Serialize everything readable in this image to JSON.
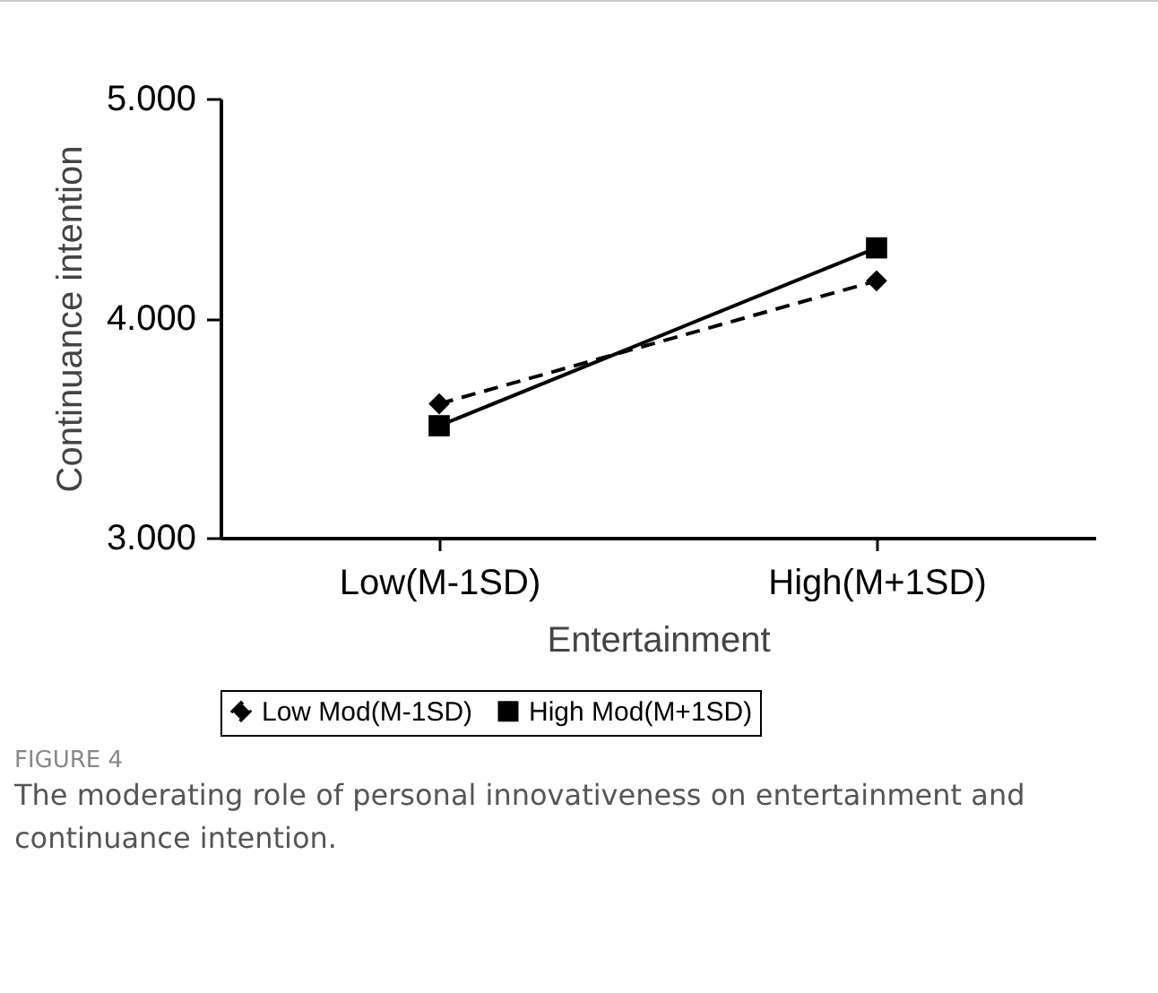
{
  "chart_data": {
    "type": "line",
    "xlabel": "Entertainment",
    "ylabel": "Continuance intention",
    "categories": [
      "Low(M-1SD)",
      "High(M+1SD)"
    ],
    "series": [
      {
        "name": "Low Mod(M-1SD)",
        "color": "#000000",
        "values": [
          3.61,
          4.17
        ],
        "marker": "diamond",
        "line_style": "dashed"
      },
      {
        "name": "High Mod(M+1SD)",
        "color": "#000000",
        "values": [
          3.51,
          4.32
        ],
        "marker": "square",
        "line_style": "solid"
      }
    ],
    "ylim": [
      3,
      5
    ],
    "yticks": [
      {
        "value": 3,
        "label": "3.000"
      },
      {
        "value": 4,
        "label": "4.000"
      },
      {
        "value": 5,
        "label": "5.000"
      }
    ],
    "grid": false,
    "legend": "bottom",
    "annotations": [
      "FIGURE 4",
      "The moderating role of personal innovativeness on entertainment and continuance intention."
    ]
  }
}
